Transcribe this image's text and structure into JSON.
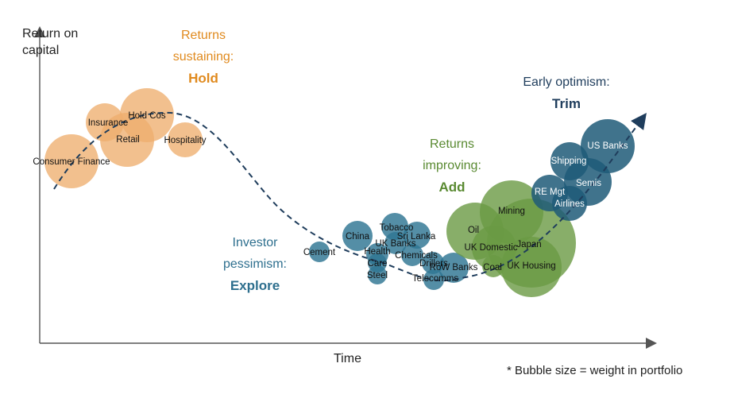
{
  "axes": {
    "y_label_line1": "Return on",
    "y_label_line2": "capital",
    "x_label": "Time"
  },
  "footnote": "* Bubble size = weight in portfolio",
  "phases": [
    {
      "id": "hold",
      "line1": "Returns",
      "line2": "sustaining:",
      "action": "Hold",
      "color": "#e08a1e"
    },
    {
      "id": "explore",
      "line1": "Investor",
      "line2": "pessimism:",
      "action": "Explore",
      "color": "#2e6f8e"
    },
    {
      "id": "add",
      "line1": "Returns",
      "line2": "improving:",
      "action": "Add",
      "color": "#5a8a32"
    },
    {
      "id": "trim",
      "line1": "Early optimism:",
      "line2": "",
      "action": "Trim",
      "color": "#1f3d5c"
    }
  ],
  "colors": {
    "hold": "#eeae6e",
    "explore": "#2e7592",
    "add": "#6a9a44",
    "trim": "#1f5a78",
    "curve": "#1f3d5c",
    "axis": "#555555"
  },
  "bubbles": [
    {
      "label": "Consumer Finance",
      "phase": "hold"
    },
    {
      "label": "Insurance",
      "phase": "hold"
    },
    {
      "label": "Hold Cos",
      "phase": "hold"
    },
    {
      "label": "Retail",
      "phase": "hold"
    },
    {
      "label": "Hospitality",
      "phase": "hold"
    },
    {
      "label": "Cement",
      "phase": "explore"
    },
    {
      "label": "China",
      "phase": "explore"
    },
    {
      "label": "Tobacco",
      "phase": "explore"
    },
    {
      "label": "Sri Lanka",
      "phase": "explore"
    },
    {
      "label": "UK Banks",
      "phase": "explore"
    },
    {
      "label": "Health",
      "phase": "explore"
    },
    {
      "label": "Care",
      "phase": "explore"
    },
    {
      "label": "Chemicals",
      "phase": "explore"
    },
    {
      "label": "Steel",
      "phase": "explore"
    },
    {
      "label": "Drillers",
      "phase": "explore"
    },
    {
      "label": "RoW Banks",
      "phase": "explore"
    },
    {
      "label": "Telecomms",
      "phase": "explore"
    },
    {
      "label": "Oil",
      "phase": "add"
    },
    {
      "label": "Mining",
      "phase": "add"
    },
    {
      "label": "UK Domestic",
      "phase": "add"
    },
    {
      "label": "Japan",
      "phase": "add"
    },
    {
      "label": "Coal",
      "phase": "add"
    },
    {
      "label": "UK Housing",
      "phase": "add"
    },
    {
      "label": "US Banks",
      "phase": "trim"
    },
    {
      "label": "Shipping",
      "phase": "trim"
    },
    {
      "label": "RE Mgt",
      "phase": "trim"
    },
    {
      "label": "Semis",
      "phase": "trim"
    },
    {
      "label": "Airlines",
      "phase": "trim"
    }
  ]
}
